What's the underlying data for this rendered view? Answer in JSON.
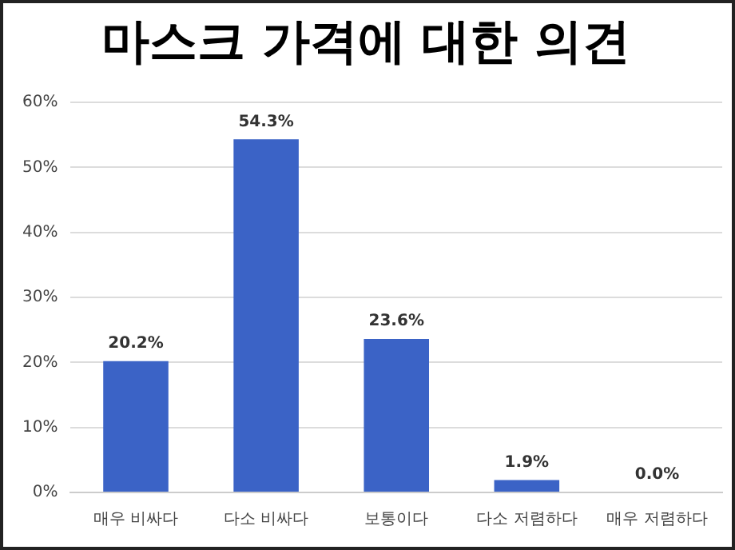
{
  "chart_data": {
    "type": "bar",
    "title": "마스크 가격에 대한 의견",
    "categories": [
      "매우 비싸다",
      "다소 비싸다",
      "보통이다",
      "다소 저렴하다",
      "매우 저렴하다"
    ],
    "values": [
      20.2,
      54.3,
      23.6,
      1.9,
      0.0
    ],
    "value_labels": [
      "20.2%",
      "54.3%",
      "23.6%",
      "1.9%",
      "0.0%"
    ],
    "color": "#3b63c6",
    "ylim": [
      0,
      60
    ],
    "yticks": [
      {
        "value": 0,
        "label": "0%"
      },
      {
        "value": 10,
        "label": "10%"
      },
      {
        "value": 20,
        "label": "20%"
      },
      {
        "value": 30,
        "label": "30%"
      },
      {
        "value": 40,
        "label": "40%"
      },
      {
        "value": 50,
        "label": "50%"
      },
      {
        "value": 60,
        "label": "60%"
      }
    ],
    "grid": "y",
    "legend": false
  }
}
